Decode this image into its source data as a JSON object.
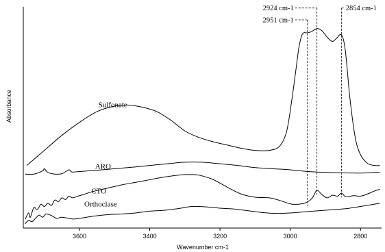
{
  "chart_data": {
    "type": "line",
    "xlabel": "Wavenumber cm-1",
    "ylabel": "Absorbance",
    "xlim": [
      3760,
      2740
    ],
    "x_reversed": true,
    "y_ticks_labeled": false,
    "xticks": [
      3600,
      3400,
      3200,
      3000,
      2800
    ],
    "xtick_labels": [
      "3600",
      "3400",
      "3200",
      "3000",
      "2800"
    ],
    "ylim": [
      0,
      1
    ],
    "series": [
      {
        "name": "Sulfonate",
        "label_at": [
          3505,
          0.56
        ],
        "points": [
          [
            3750,
            0.29
          ],
          [
            3700,
            0.36
          ],
          [
            3650,
            0.43
          ],
          [
            3600,
            0.49
          ],
          [
            3550,
            0.54
          ],
          [
            3500,
            0.565
          ],
          [
            3460,
            0.57
          ],
          [
            3420,
            0.56
          ],
          [
            3380,
            0.54
          ],
          [
            3340,
            0.5
          ],
          [
            3300,
            0.45
          ],
          [
            3260,
            0.42
          ],
          [
            3220,
            0.4
          ],
          [
            3180,
            0.385
          ],
          [
            3140,
            0.37
          ],
          [
            3100,
            0.36
          ],
          [
            3060,
            0.36
          ],
          [
            3030,
            0.38
          ],
          [
            3010,
            0.45
          ],
          [
            2995,
            0.6
          ],
          [
            2985,
            0.72
          ],
          [
            2975,
            0.84
          ],
          [
            2965,
            0.9
          ],
          [
            2951,
            0.905
          ],
          [
            2940,
            0.91
          ],
          [
            2924,
            0.925
          ],
          [
            2910,
            0.915
          ],
          [
            2895,
            0.885
          ],
          [
            2880,
            0.865
          ],
          [
            2868,
            0.88
          ],
          [
            2854,
            0.895
          ],
          [
            2843,
            0.82
          ],
          [
            2830,
            0.6
          ],
          [
            2815,
            0.42
          ],
          [
            2800,
            0.34
          ],
          [
            2780,
            0.3
          ],
          [
            2760,
            0.29
          ],
          [
            2745,
            0.29
          ]
        ]
      },
      {
        "name": "ARO",
        "label_at": [
          3533,
          0.275
        ],
        "points": [
          [
            3755,
            0.25
          ],
          [
            3730,
            0.25
          ],
          [
            3705,
            0.265
          ],
          [
            3700,
            0.275
          ],
          [
            3690,
            0.258
          ],
          [
            3670,
            0.25
          ],
          [
            3650,
            0.252
          ],
          [
            3630,
            0.27
          ],
          [
            3622,
            0.26
          ],
          [
            3600,
            0.262
          ],
          [
            3550,
            0.268
          ],
          [
            3500,
            0.275
          ],
          [
            3450,
            0.282
          ],
          [
            3400,
            0.29
          ],
          [
            3350,
            0.298
          ],
          [
            3300,
            0.305
          ],
          [
            3250,
            0.305
          ],
          [
            3200,
            0.298
          ],
          [
            3150,
            0.29
          ],
          [
            3100,
            0.28
          ],
          [
            3050,
            0.275
          ],
          [
            3000,
            0.27
          ],
          [
            2950,
            0.262
          ],
          [
            2900,
            0.258
          ],
          [
            2860,
            0.256
          ],
          [
            2820,
            0.255
          ],
          [
            2790,
            0.255
          ],
          [
            2760,
            0.258
          ],
          [
            2745,
            0.258
          ]
        ]
      },
      {
        "name": "CTO",
        "label_at": [
          3545,
          0.16
        ],
        "points": [
          [
            3755,
            0.04
          ],
          [
            3745,
            0.07
          ],
          [
            3740,
            0.05
          ],
          [
            3730,
            0.095
          ],
          [
            3720,
            0.085
          ],
          [
            3710,
            0.11
          ],
          [
            3700,
            0.1
          ],
          [
            3690,
            0.115
          ],
          [
            3680,
            0.105
          ],
          [
            3670,
            0.13
          ],
          [
            3660,
            0.122
          ],
          [
            3650,
            0.14
          ],
          [
            3640,
            0.132
          ],
          [
            3630,
            0.148
          ],
          [
            3620,
            0.14
          ],
          [
            3600,
            0.15
          ],
          [
            3560,
            0.17
          ],
          [
            3520,
            0.185
          ],
          [
            3480,
            0.2
          ],
          [
            3440,
            0.212
          ],
          [
            3400,
            0.224
          ],
          [
            3360,
            0.236
          ],
          [
            3320,
            0.245
          ],
          [
            3290,
            0.248
          ],
          [
            3260,
            0.245
          ],
          [
            3220,
            0.225
          ],
          [
            3180,
            0.19
          ],
          [
            3140,
            0.158
          ],
          [
            3100,
            0.143
          ],
          [
            3060,
            0.14
          ],
          [
            3030,
            0.128
          ],
          [
            3000,
            0.112
          ],
          [
            2980,
            0.11
          ],
          [
            2960,
            0.115
          ],
          [
            2945,
            0.127
          ],
          [
            2935,
            0.145
          ],
          [
            2924,
            0.175
          ],
          [
            2910,
            0.155
          ],
          [
            2895,
            0.14
          ],
          [
            2880,
            0.152
          ],
          [
            2865,
            0.148
          ],
          [
            2854,
            0.162
          ],
          [
            2842,
            0.145
          ],
          [
            2820,
            0.15
          ],
          [
            2800,
            0.148
          ],
          [
            2780,
            0.158
          ],
          [
            2760,
            0.172
          ],
          [
            2745,
            0.18
          ]
        ]
      },
      {
        "name": "Orthoclase",
        "label_at": [
          3540,
          0.1
        ],
        "points": [
          [
            3755,
            0.02
          ],
          [
            3745,
            0.035
          ],
          [
            3735,
            0.03
          ],
          [
            3725,
            0.045
          ],
          [
            3715,
            0.06
          ],
          [
            3705,
            0.05
          ],
          [
            3695,
            0.065
          ],
          [
            3680,
            0.058
          ],
          [
            3665,
            0.045
          ],
          [
            3650,
            0.05
          ],
          [
            3620,
            0.042
          ],
          [
            3600,
            0.045
          ],
          [
            3560,
            0.055
          ],
          [
            3520,
            0.062
          ],
          [
            3480,
            0.065
          ],
          [
            3440,
            0.07
          ],
          [
            3400,
            0.078
          ],
          [
            3360,
            0.082
          ],
          [
            3320,
            0.09
          ],
          [
            3280,
            0.1
          ],
          [
            3240,
            0.098
          ],
          [
            3200,
            0.092
          ],
          [
            3160,
            0.088
          ],
          [
            3120,
            0.08
          ],
          [
            3080,
            0.072
          ],
          [
            3040,
            0.068
          ],
          [
            3000,
            0.07
          ],
          [
            2960,
            0.075
          ],
          [
            2920,
            0.08
          ],
          [
            2880,
            0.085
          ],
          [
            2840,
            0.09
          ],
          [
            2800,
            0.1
          ],
          [
            2770,
            0.108
          ],
          [
            2745,
            0.115
          ]
        ]
      }
    ],
    "annotations": [
      {
        "text": "2924 cm-1",
        "x": 2924,
        "label_at": [
          2990,
          1.02
        ],
        "label_anchor": "end",
        "bracket_y": 1.02
      },
      {
        "text": "2951 cm-1",
        "x": 2951,
        "label_at": [
          2990,
          0.965
        ],
        "label_anchor": "end",
        "bracket_y": 0.965
      },
      {
        "text": "2854 cm-1",
        "x": 2854,
        "label_at": [
          2842,
          1.02
        ],
        "label_anchor": "start",
        "bracket_y": 1.02
      }
    ]
  }
}
